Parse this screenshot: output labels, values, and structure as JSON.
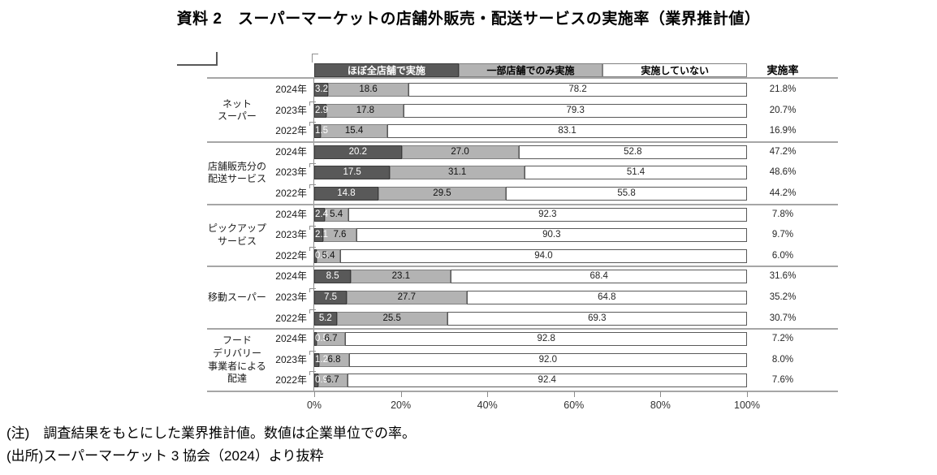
{
  "title": "資料 2　スーパーマーケットの店舗外販売・配送サービスの実施率（業界推計値）",
  "legend": {
    "rate_header": "実施率",
    "items": [
      {
        "label": "ほぼ全店舗で実施",
        "color": "#595959",
        "border": "#3b3b3b",
        "text_color": "#ffffff"
      },
      {
        "label": "一部店舗でのみ実施",
        "color": "#b3b3b3",
        "border": "#808080",
        "text_color": "#000000"
      },
      {
        "label": "実施していない",
        "color": "#ffffff",
        "border": "#808080",
        "text_color": "#000000"
      }
    ]
  },
  "chart_data": {
    "type": "bar",
    "stacked": true,
    "orientation": "horizontal",
    "unit": "%",
    "xlim": [
      0,
      100
    ],
    "x_ticks": [
      "0%",
      "20%",
      "40%",
      "60%",
      "80%",
      "100%"
    ],
    "series_names": [
      "ほぼ全店舗で実施",
      "一部店舗でのみ実施",
      "実施していない"
    ],
    "groups": [
      {
        "category": "ネット\nスーパー",
        "rows": [
          {
            "year": "2024年",
            "values": [
              3.2,
              18.6,
              78.2
            ],
            "labels": [
              "3.2",
              "18.6",
              "78.2"
            ],
            "rate": "21.8%"
          },
          {
            "year": "2023年",
            "values": [
              2.9,
              17.8,
              79.3
            ],
            "labels": [
              "2.9",
              "17.8",
              "79.3"
            ],
            "rate": "20.7%"
          },
          {
            "year": "2022年",
            "values": [
              1.5,
              15.4,
              83.1
            ],
            "labels": [
              "1.5",
              "15.4",
              "83.1"
            ],
            "rate": "16.9%"
          }
        ]
      },
      {
        "category": "店舗販売分の\n配送サービス",
        "rows": [
          {
            "year": "2024年",
            "values": [
              20.2,
              27.0,
              52.8
            ],
            "labels": [
              "20.2",
              "27.0",
              "52.8"
            ],
            "rate": "47.2%"
          },
          {
            "year": "2023年",
            "values": [
              17.5,
              31.1,
              51.4
            ],
            "labels": [
              "17.5",
              "31.1",
              "51.4"
            ],
            "rate": "48.6%"
          },
          {
            "year": "2022年",
            "values": [
              14.8,
              29.5,
              55.8
            ],
            "labels": [
              "14.8",
              "29.5",
              "55.8"
            ],
            "rate": "44.2%"
          }
        ]
      },
      {
        "category": "ピックアップ\nサービス",
        "rows": [
          {
            "year": "2024年",
            "values": [
              2.4,
              5.4,
              92.3
            ],
            "labels": [
              "2.4",
              "5.4",
              "92.3"
            ],
            "rate": "7.8%"
          },
          {
            "year": "2023年",
            "values": [
              2.1,
              7.6,
              90.3
            ],
            "labels": [
              "2.1",
              "7.6",
              "90.3"
            ],
            "rate": "9.7%"
          },
          {
            "year": "2022年",
            "values": [
              0.6,
              5.4,
              94.0
            ],
            "labels": [
              "0.6",
              "5.4",
              "94.0"
            ],
            "rate": "6.0%"
          }
        ]
      },
      {
        "category": "移動スーパー",
        "rows": [
          {
            "year": "2024年",
            "values": [
              8.5,
              23.1,
              68.4
            ],
            "labels": [
              "8.5",
              "23.1",
              "68.4"
            ],
            "rate": "31.6%"
          },
          {
            "year": "2023年",
            "values": [
              7.5,
              27.7,
              64.8
            ],
            "labels": [
              "7.5",
              "27.7",
              "64.8"
            ],
            "rate": "35.2%"
          },
          {
            "year": "2022年",
            "values": [
              5.2,
              25.5,
              69.3
            ],
            "labels": [
              "5.2",
              "25.5",
              "69.3"
            ],
            "rate": "30.7%"
          }
        ]
      },
      {
        "category": "フード\nデリバリー\n事業者による\n配達",
        "rows": [
          {
            "year": "2024年",
            "values": [
              0.5,
              6.7,
              92.8
            ],
            "labels": [
              "0.5",
              "6.7",
              "92.8"
            ],
            "rate": "7.2%"
          },
          {
            "year": "2023年",
            "values": [
              1.2,
              6.8,
              92.0
            ],
            "labels": [
              "1.2",
              "6.8",
              "92.0"
            ],
            "rate": "8.0%"
          },
          {
            "year": "2022年",
            "values": [
              0.9,
              6.7,
              92.4
            ],
            "labels": [
              "0.9",
              "6.7",
              "92.4"
            ],
            "rate": "7.6%"
          }
        ]
      }
    ]
  },
  "notes": [
    "(注)　調査結果をもとにした業界推計値。数値は企業単位での率。",
    "(出所)スーパーマーケット 3 協会（2024）より抜粋"
  ],
  "colors": {
    "segment_full": "#595959",
    "segment_partial": "#b3b3b3",
    "segment_none": "#ffffff",
    "separator": "#a6a6a6",
    "axis": "#8c8c8c"
  }
}
